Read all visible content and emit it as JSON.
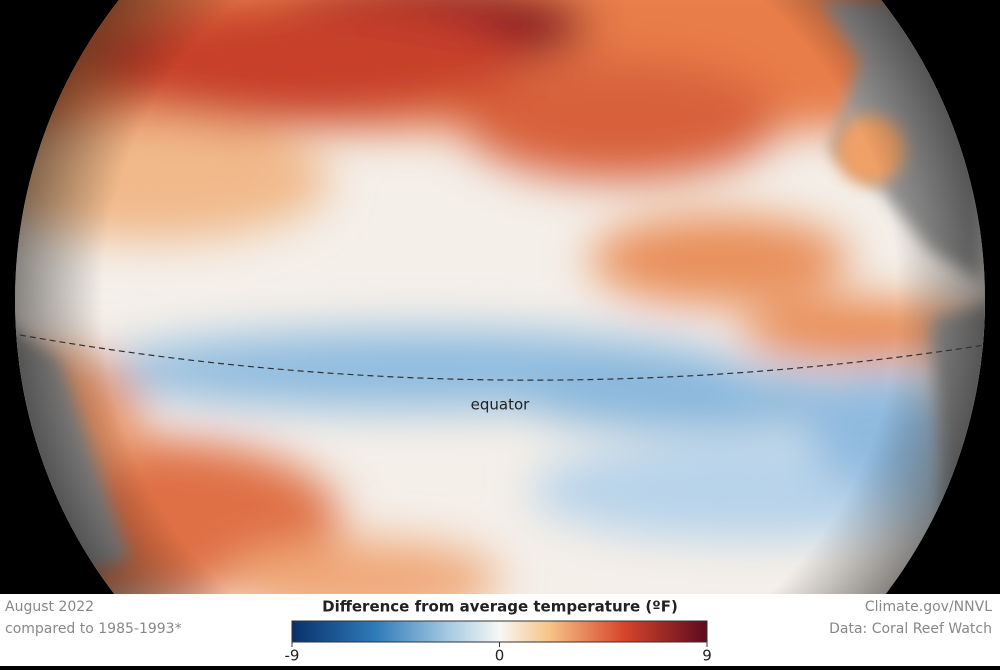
{
  "caption": {
    "date": "August 2022",
    "baseline": "compared to 1985-1993*"
  },
  "credits": {
    "source": "Climate.gov/NNVL",
    "data": "Data: Coral Reef Watch"
  },
  "map": {
    "label": "equator"
  },
  "legend": {
    "title": "Difference from average temperature (ºF)",
    "range": [
      -9,
      9
    ],
    "ticks": [
      -9,
      0,
      9
    ]
  }
}
